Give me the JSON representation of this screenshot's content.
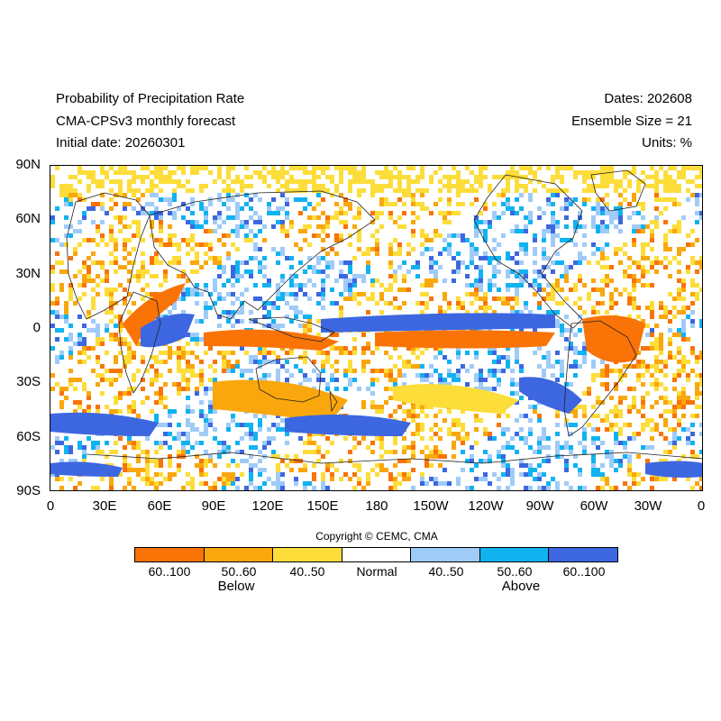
{
  "header": {
    "title": "Probability of Precipitation Rate",
    "model": "CMA-CPSv3 monthly forecast",
    "initial_date": "Initial date: 20260301",
    "dates": "Dates: 202608",
    "ensemble": "Ensemble Size = 21",
    "units": "Units: %"
  },
  "map": {
    "lat_labels": [
      "90N",
      "60N",
      "30N",
      "0",
      "30S",
      "60S",
      "90S"
    ],
    "lon_labels": [
      "0",
      "30E",
      "60E",
      "90E",
      "120E",
      "150E",
      "180",
      "150W",
      "120W",
      "90W",
      "60W",
      "30W",
      "0"
    ]
  },
  "copyright": "Copyright © CEMC, CMA",
  "legend": {
    "items": [
      {
        "label": "60..100",
        "color": "#f97306"
      },
      {
        "label": "50..60",
        "color": "#f9a70c"
      },
      {
        "label": "40..50",
        "color": "#fddd39"
      },
      {
        "label": "Normal",
        "color": "#ffffff"
      },
      {
        "label": "40..50",
        "color": "#9fcbf9"
      },
      {
        "label": "50..60",
        "color": "#10b3f0"
      },
      {
        "label": "60..100",
        "color": "#3d67e0"
      }
    ],
    "below_label": "Below",
    "above_label": "Above"
  }
}
